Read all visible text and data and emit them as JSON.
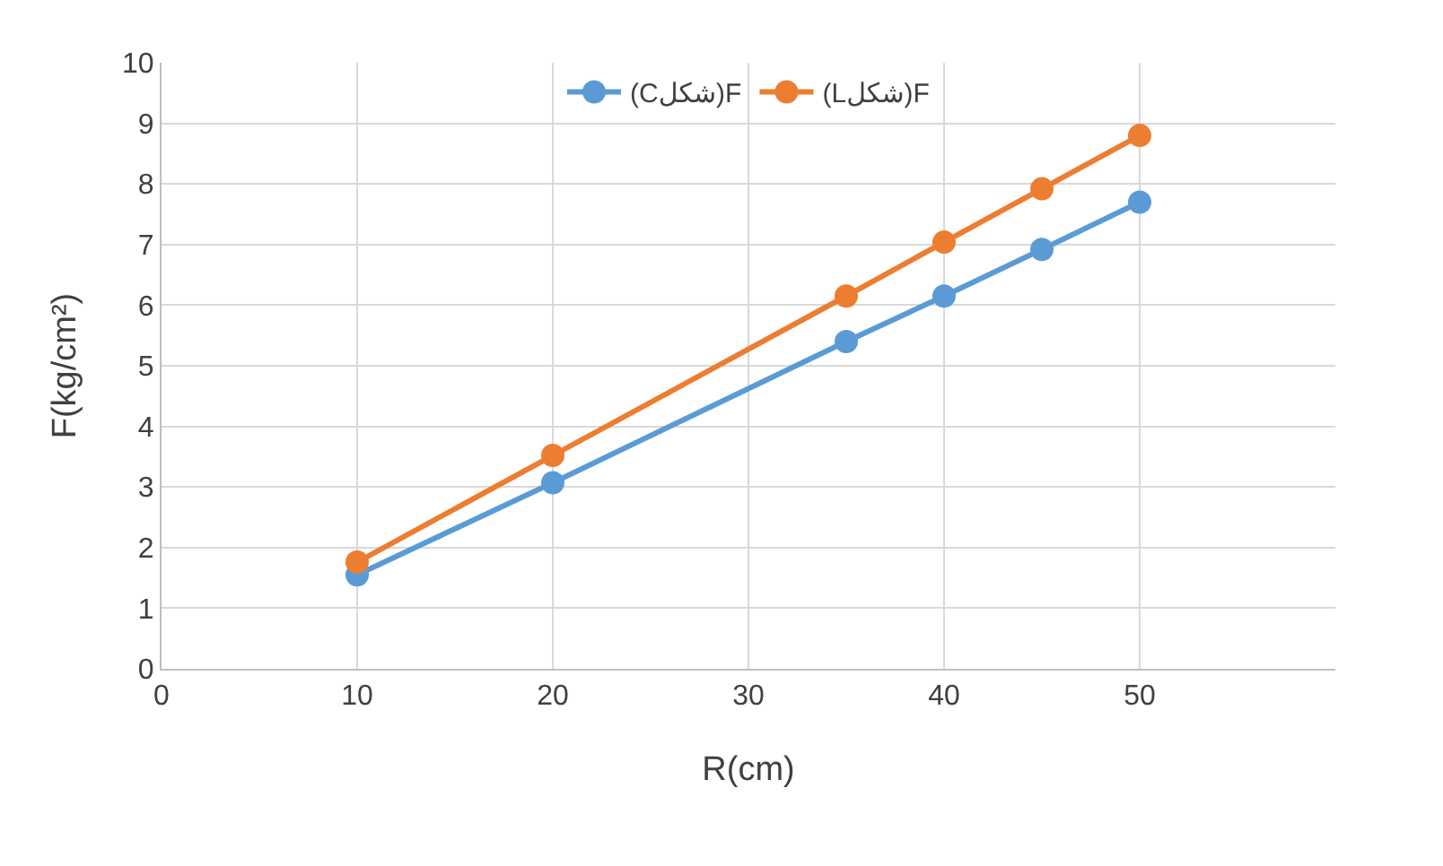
{
  "chart_data": {
    "type": "line",
    "xlabel": "R(cm)",
    "ylabel": "F(kg/cm²)",
    "x": [
      10,
      20,
      35,
      40,
      45,
      50
    ],
    "series": [
      {
        "name": "(Cشكل)F",
        "color": "#5b9bd5",
        "values": [
          1.55,
          3.07,
          5.4,
          6.15,
          6.92,
          7.7
        ]
      },
      {
        "name": "(Lشكل)F",
        "color": "#ed7d31",
        "values": [
          1.76,
          3.52,
          6.15,
          7.04,
          7.92,
          8.8
        ]
      }
    ],
    "xlim": [
      0,
      60
    ],
    "xticks": [
      0,
      10,
      20,
      30,
      40,
      50
    ],
    "ylim": [
      0,
      10
    ],
    "yticks": [
      0,
      1,
      2,
      3,
      4,
      5,
      6,
      7,
      8,
      9,
      10
    ],
    "grid": true,
    "legend": "top",
    "marker": "circle",
    "line_style": "solid"
  }
}
